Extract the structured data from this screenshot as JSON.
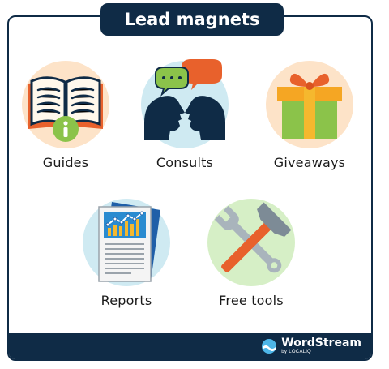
{
  "header": {
    "title": "Lead magnets"
  },
  "items": [
    {
      "label": "Guides",
      "icon": "book-info-icon"
    },
    {
      "label": "Consults",
      "icon": "consult-heads-icon"
    },
    {
      "label": "Giveaways",
      "icon": "gift-box-icon"
    },
    {
      "label": "Reports",
      "icon": "report-chart-icon"
    },
    {
      "label": "Free tools",
      "icon": "hammer-wrench-icon"
    }
  ],
  "footer": {
    "brand_name": "WordStream",
    "brand_sub": "by LOCALiQ"
  },
  "colors": {
    "navy": "#0f2b46",
    "peach": "#fde3c8",
    "light_blue": "#cfeaf2",
    "light_green": "#d6efc6",
    "orange": "#e8612c",
    "green": "#8bc34a",
    "yellow": "#f5b82e"
  }
}
